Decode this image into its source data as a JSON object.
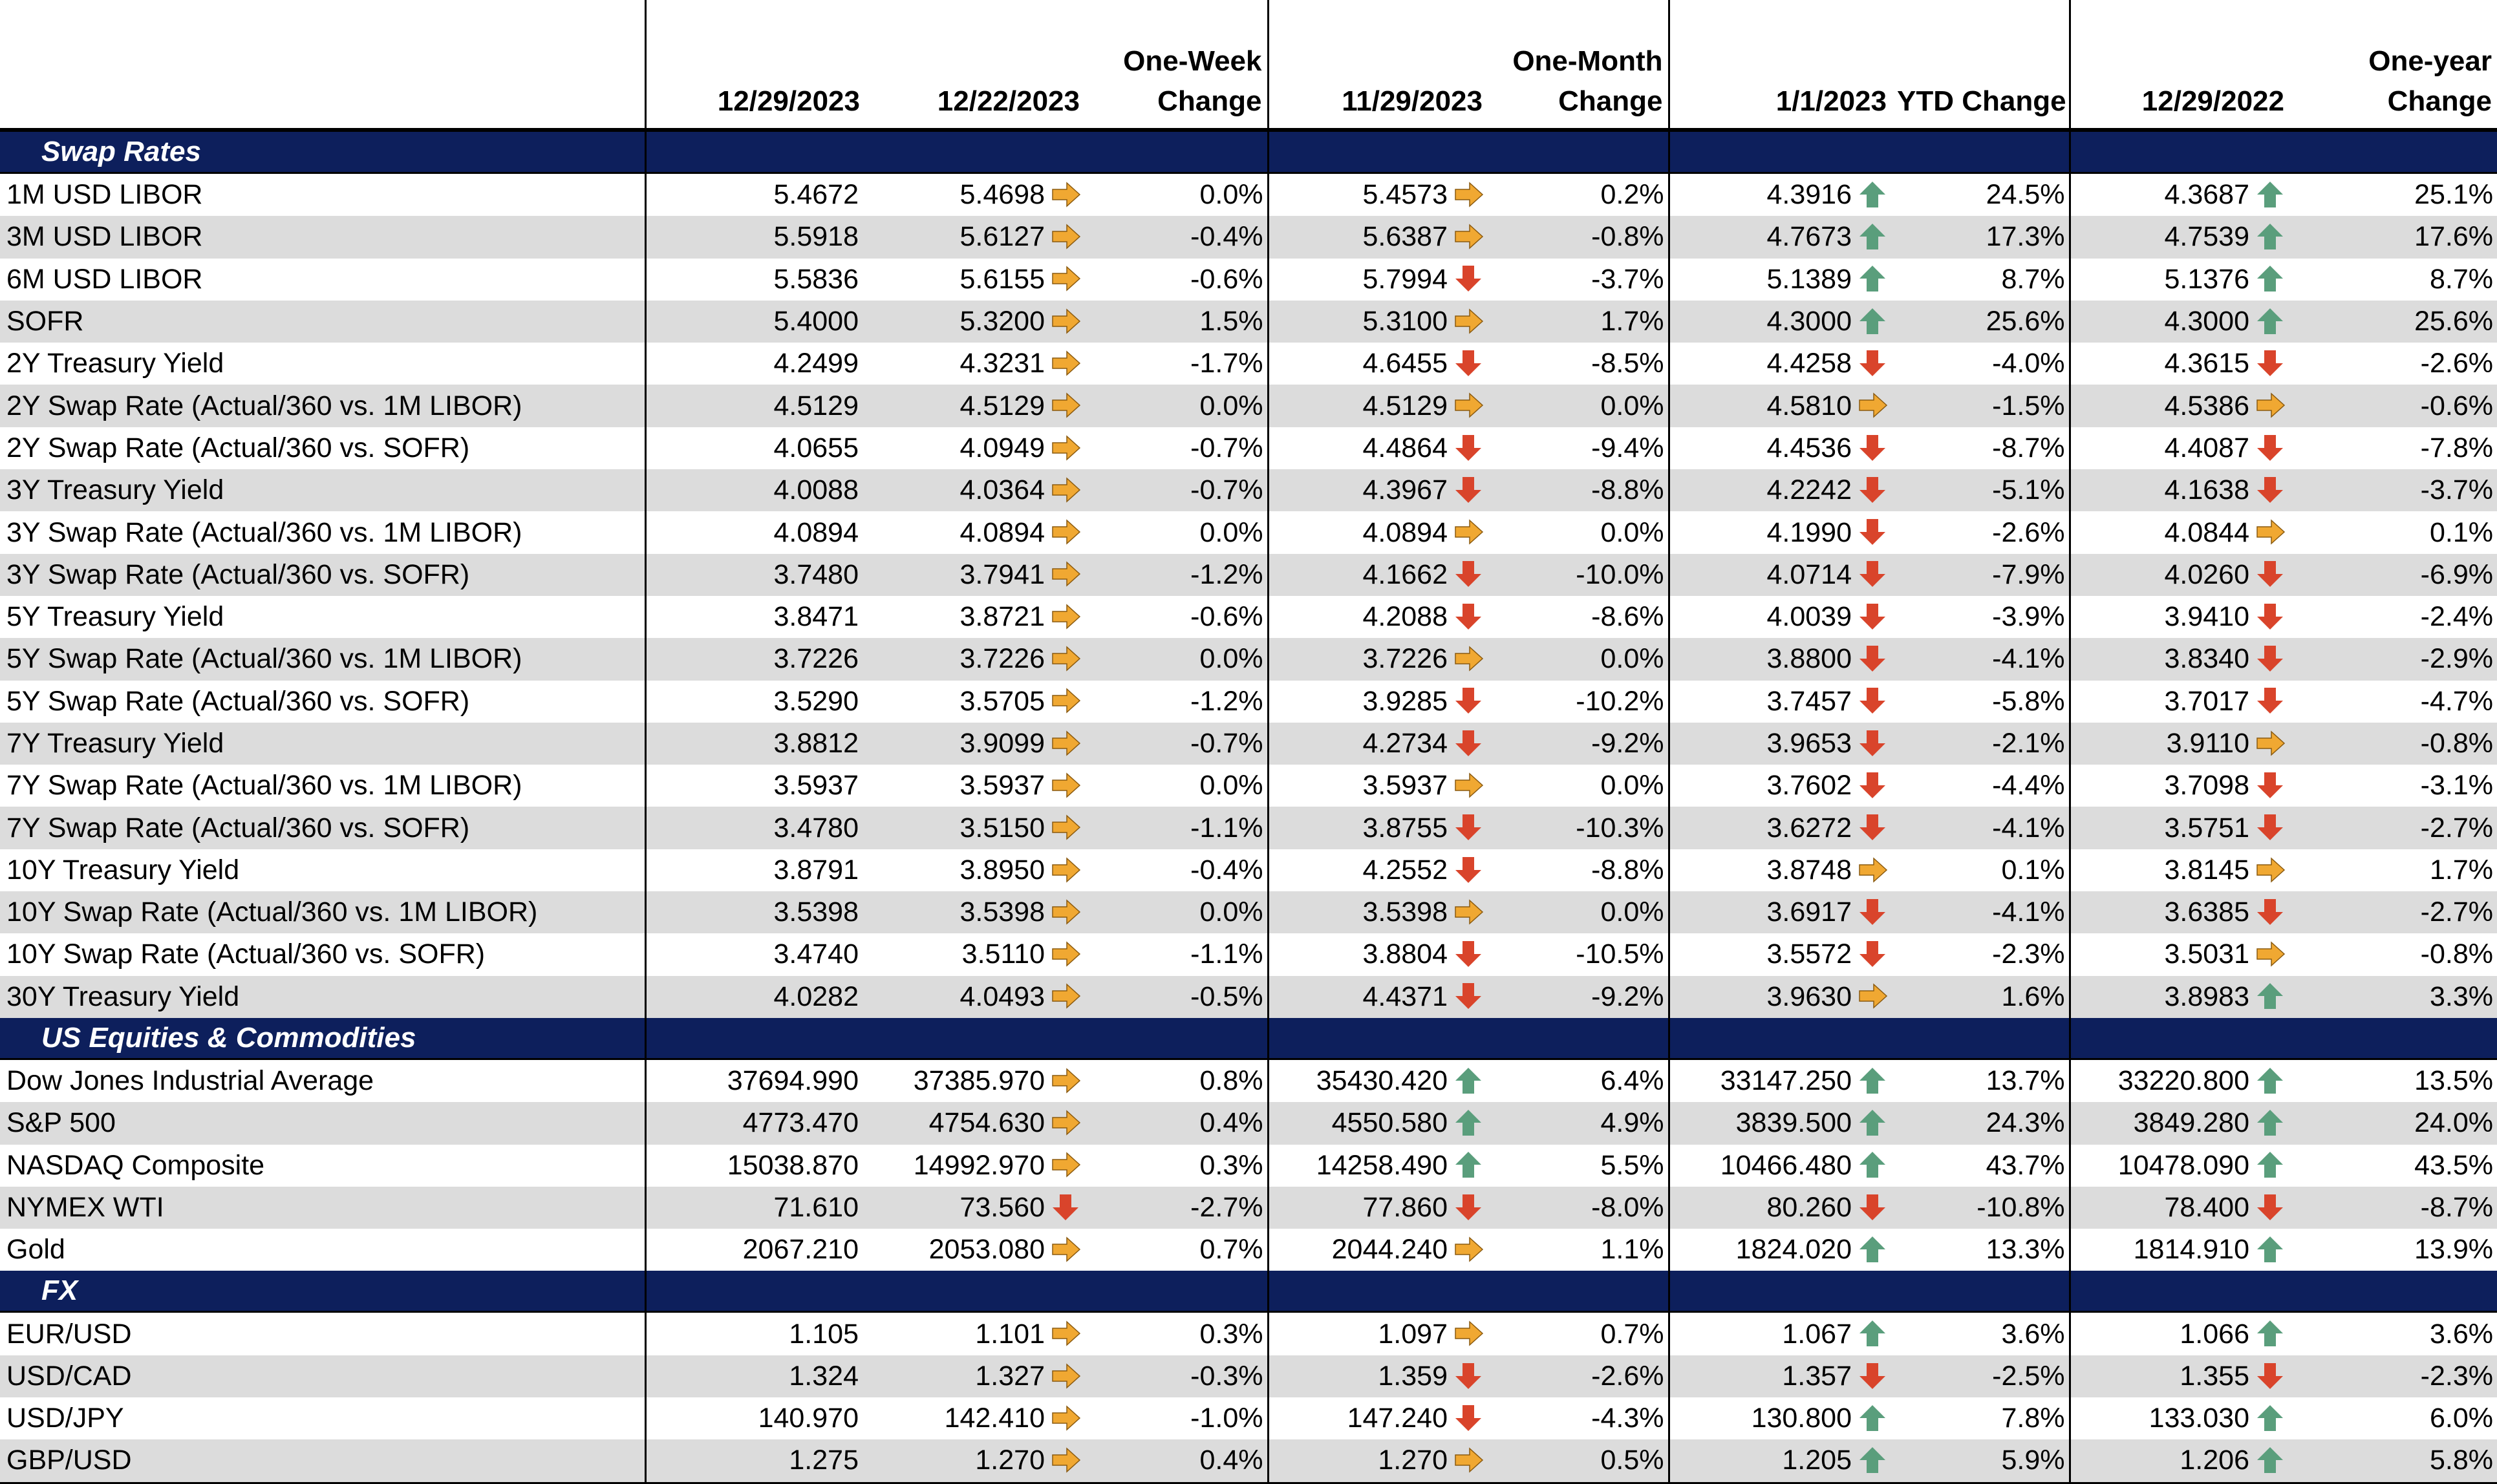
{
  "headers": {
    "col1": "12/29/2023",
    "col2": "12/22/2023",
    "col3_line1": "One-Week",
    "col3_line2": "Change",
    "col4": "11/29/2023",
    "col5_line1": "One-Month",
    "col5_line2": "Change",
    "col6": "1/1/2023",
    "col7": "YTD Change",
    "col8": "12/29/2022",
    "col9_line1": "One-year",
    "col9_line2": "Change"
  },
  "colors": {
    "section_bg": "#0d1f5c",
    "up": "#5a9e7c",
    "down": "#d9442b",
    "flat": "#f0a832",
    "stripe": "#dcdcdc"
  },
  "sections": [
    {
      "title": "Swap Rates",
      "rows": [
        {
          "name": "1M USD LIBOR",
          "v1": "5.4672",
          "v2": "5.4698",
          "a2": "flat",
          "wk": "0.0%",
          "v4": "5.4573",
          "a4": "flat",
          "mo": "0.2%",
          "v6": "4.3916",
          "a6": "up",
          "ytd": "24.5%",
          "v8": "4.3687",
          "a8": "up",
          "yr": "25.1%"
        },
        {
          "name": "3M USD LIBOR",
          "v1": "5.5918",
          "v2": "5.6127",
          "a2": "flat",
          "wk": "-0.4%",
          "v4": "5.6387",
          "a4": "flat",
          "mo": "-0.8%",
          "v6": "4.7673",
          "a6": "up",
          "ytd": "17.3%",
          "v8": "4.7539",
          "a8": "up",
          "yr": "17.6%"
        },
        {
          "name": "6M USD LIBOR",
          "v1": "5.5836",
          "v2": "5.6155",
          "a2": "flat",
          "wk": "-0.6%",
          "v4": "5.7994",
          "a4": "down",
          "mo": "-3.7%",
          "v6": "5.1389",
          "a6": "up",
          "ytd": "8.7%",
          "v8": "5.1376",
          "a8": "up",
          "yr": "8.7%"
        },
        {
          "name": "SOFR",
          "v1": "5.4000",
          "v2": "5.3200",
          "a2": "flat",
          "wk": "1.5%",
          "v4": "5.3100",
          "a4": "flat",
          "mo": "1.7%",
          "v6": "4.3000",
          "a6": "up",
          "ytd": "25.6%",
          "v8": "4.3000",
          "a8": "up",
          "yr": "25.6%"
        },
        {
          "name": "2Y Treasury Yield",
          "v1": "4.2499",
          "v2": "4.3231",
          "a2": "flat",
          "wk": "-1.7%",
          "v4": "4.6455",
          "a4": "down",
          "mo": "-8.5%",
          "v6": "4.4258",
          "a6": "down",
          "ytd": "-4.0%",
          "v8": "4.3615",
          "a8": "down",
          "yr": "-2.6%"
        },
        {
          "name": "2Y Swap Rate (Actual/360 vs. 1M LIBOR)",
          "v1": "4.5129",
          "v2": "4.5129",
          "a2": "flat",
          "wk": "0.0%",
          "v4": "4.5129",
          "a4": "flat",
          "mo": "0.0%",
          "v6": "4.5810",
          "a6": "flat",
          "ytd": "-1.5%",
          "v8": "4.5386",
          "a8": "flat",
          "yr": "-0.6%"
        },
        {
          "name": "2Y Swap Rate (Actual/360 vs. SOFR)",
          "v1": "4.0655",
          "v2": "4.0949",
          "a2": "flat",
          "wk": "-0.7%",
          "v4": "4.4864",
          "a4": "down",
          "mo": "-9.4%",
          "v6": "4.4536",
          "a6": "down",
          "ytd": "-8.7%",
          "v8": "4.4087",
          "a8": "down",
          "yr": "-7.8%"
        },
        {
          "name": "3Y Treasury Yield",
          "v1": "4.0088",
          "v2": "4.0364",
          "a2": "flat",
          "wk": "-0.7%",
          "v4": "4.3967",
          "a4": "down",
          "mo": "-8.8%",
          "v6": "4.2242",
          "a6": "down",
          "ytd": "-5.1%",
          "v8": "4.1638",
          "a8": "down",
          "yr": "-3.7%"
        },
        {
          "name": "3Y Swap Rate (Actual/360 vs. 1M LIBOR)",
          "v1": "4.0894",
          "v2": "4.0894",
          "a2": "flat",
          "wk": "0.0%",
          "v4": "4.0894",
          "a4": "flat",
          "mo": "0.0%",
          "v6": "4.1990",
          "a6": "down",
          "ytd": "-2.6%",
          "v8": "4.0844",
          "a8": "flat",
          "yr": "0.1%"
        },
        {
          "name": "3Y Swap Rate (Actual/360 vs. SOFR)",
          "v1": "3.7480",
          "v2": "3.7941",
          "a2": "flat",
          "wk": "-1.2%",
          "v4": "4.1662",
          "a4": "down",
          "mo": "-10.0%",
          "v6": "4.0714",
          "a6": "down",
          "ytd": "-7.9%",
          "v8": "4.0260",
          "a8": "down",
          "yr": "-6.9%"
        },
        {
          "name": "5Y Treasury Yield",
          "v1": "3.8471",
          "v2": "3.8721",
          "a2": "flat",
          "wk": "-0.6%",
          "v4": "4.2088",
          "a4": "down",
          "mo": "-8.6%",
          "v6": "4.0039",
          "a6": "down",
          "ytd": "-3.9%",
          "v8": "3.9410",
          "a8": "down",
          "yr": "-2.4%"
        },
        {
          "name": "5Y Swap Rate (Actual/360 vs. 1M LIBOR)",
          "v1": "3.7226",
          "v2": "3.7226",
          "a2": "flat",
          "wk": "0.0%",
          "v4": "3.7226",
          "a4": "flat",
          "mo": "0.0%",
          "v6": "3.8800",
          "a6": "down",
          "ytd": "-4.1%",
          "v8": "3.8340",
          "a8": "down",
          "yr": "-2.9%"
        },
        {
          "name": "5Y Swap Rate (Actual/360 vs. SOFR)",
          "v1": "3.5290",
          "v2": "3.5705",
          "a2": "flat",
          "wk": "-1.2%",
          "v4": "3.9285",
          "a4": "down",
          "mo": "-10.2%",
          "v6": "3.7457",
          "a6": "down",
          "ytd": "-5.8%",
          "v8": "3.7017",
          "a8": "down",
          "yr": "-4.7%"
        },
        {
          "name": "7Y Treasury Yield",
          "v1": "3.8812",
          "v2": "3.9099",
          "a2": "flat",
          "wk": "-0.7%",
          "v4": "4.2734",
          "a4": "down",
          "mo": "-9.2%",
          "v6": "3.9653",
          "a6": "down",
          "ytd": "-2.1%",
          "v8": "3.9110",
          "a8": "flat",
          "yr": "-0.8%"
        },
        {
          "name": "7Y Swap Rate (Actual/360 vs. 1M LIBOR)",
          "v1": "3.5937",
          "v2": "3.5937",
          "a2": "flat",
          "wk": "0.0%",
          "v4": "3.5937",
          "a4": "flat",
          "mo": "0.0%",
          "v6": "3.7602",
          "a6": "down",
          "ytd": "-4.4%",
          "v8": "3.7098",
          "a8": "down",
          "yr": "-3.1%"
        },
        {
          "name": "7Y Swap Rate (Actual/360 vs. SOFR)",
          "v1": "3.4780",
          "v2": "3.5150",
          "a2": "flat",
          "wk": "-1.1%",
          "v4": "3.8755",
          "a4": "down",
          "mo": "-10.3%",
          "v6": "3.6272",
          "a6": "down",
          "ytd": "-4.1%",
          "v8": "3.5751",
          "a8": "down",
          "yr": "-2.7%"
        },
        {
          "name": "10Y Treasury Yield",
          "v1": "3.8791",
          "v2": "3.8950",
          "a2": "flat",
          "wk": "-0.4%",
          "v4": "4.2552",
          "a4": "down",
          "mo": "-8.8%",
          "v6": "3.8748",
          "a6": "flat",
          "ytd": "0.1%",
          "v8": "3.8145",
          "a8": "flat",
          "yr": "1.7%"
        },
        {
          "name": "10Y Swap Rate (Actual/360 vs. 1M LIBOR)",
          "v1": "3.5398",
          "v2": "3.5398",
          "a2": "flat",
          "wk": "0.0%",
          "v4": "3.5398",
          "a4": "flat",
          "mo": "0.0%",
          "v6": "3.6917",
          "a6": "down",
          "ytd": "-4.1%",
          "v8": "3.6385",
          "a8": "down",
          "yr": "-2.7%"
        },
        {
          "name": "10Y Swap Rate (Actual/360 vs. SOFR)",
          "v1": "3.4740",
          "v2": "3.5110",
          "a2": "flat",
          "wk": "-1.1%",
          "v4": "3.8804",
          "a4": "down",
          "mo": "-10.5%",
          "v6": "3.5572",
          "a6": "down",
          "ytd": "-2.3%",
          "v8": "3.5031",
          "a8": "flat",
          "yr": "-0.8%"
        },
        {
          "name": "30Y Treasury Yield",
          "v1": "4.0282",
          "v2": "4.0493",
          "a2": "flat",
          "wk": "-0.5%",
          "v4": "4.4371",
          "a4": "down",
          "mo": "-9.2%",
          "v6": "3.9630",
          "a6": "flat",
          "ytd": "1.6%",
          "v8": "3.8983",
          "a8": "up",
          "yr": "3.3%"
        }
      ]
    },
    {
      "title": "US Equities & Commodities",
      "rows": [
        {
          "name": "Dow Jones Industrial Average",
          "v1": "37694.990",
          "v2": "37385.970",
          "a2": "flat",
          "wk": "0.8%",
          "v4": "35430.420",
          "a4": "up",
          "mo": "6.4%",
          "v6": "33147.250",
          "a6": "up",
          "ytd": "13.7%",
          "v8": "33220.800",
          "a8": "up",
          "yr": "13.5%"
        },
        {
          "name": "S&P 500",
          "v1": "4773.470",
          "v2": "4754.630",
          "a2": "flat",
          "wk": "0.4%",
          "v4": "4550.580",
          "a4": "up",
          "mo": "4.9%",
          "v6": "3839.500",
          "a6": "up",
          "ytd": "24.3%",
          "v8": "3849.280",
          "a8": "up",
          "yr": "24.0%"
        },
        {
          "name": "NASDAQ Composite",
          "v1": "15038.870",
          "v2": "14992.970",
          "a2": "flat",
          "wk": "0.3%",
          "v4": "14258.490",
          "a4": "up",
          "mo": "5.5%",
          "v6": "10466.480",
          "a6": "up",
          "ytd": "43.7%",
          "v8": "10478.090",
          "a8": "up",
          "yr": "43.5%"
        },
        {
          "name": "NYMEX WTI",
          "v1": "71.610",
          "v2": "73.560",
          "a2": "down",
          "wk": "-2.7%",
          "v4": "77.860",
          "a4": "down",
          "mo": "-8.0%",
          "v6": "80.260",
          "a6": "down",
          "ytd": "-10.8%",
          "v8": "78.400",
          "a8": "down",
          "yr": "-8.7%"
        },
        {
          "name": "Gold",
          "v1": "2067.210",
          "v2": "2053.080",
          "a2": "flat",
          "wk": "0.7%",
          "v4": "2044.240",
          "a4": "flat",
          "mo": "1.1%",
          "v6": "1824.020",
          "a6": "up",
          "ytd": "13.3%",
          "v8": "1814.910",
          "a8": "up",
          "yr": "13.9%"
        }
      ]
    },
    {
      "title": "FX",
      "rows": [
        {
          "name": "EUR/USD",
          "v1": "1.105",
          "v2": "1.101",
          "a2": "flat",
          "wk": "0.3%",
          "v4": "1.097",
          "a4": "flat",
          "mo": "0.7%",
          "v6": "1.067",
          "a6": "up",
          "ytd": "3.6%",
          "v8": "1.066",
          "a8": "up",
          "yr": "3.6%"
        },
        {
          "name": "USD/CAD",
          "v1": "1.324",
          "v2": "1.327",
          "a2": "flat",
          "wk": "-0.3%",
          "v4": "1.359",
          "a4": "down",
          "mo": "-2.6%",
          "v6": "1.357",
          "a6": "down",
          "ytd": "-2.5%",
          "v8": "1.355",
          "a8": "down",
          "yr": "-2.3%"
        },
        {
          "name": "USD/JPY",
          "v1": "140.970",
          "v2": "142.410",
          "a2": "flat",
          "wk": "-1.0%",
          "v4": "147.240",
          "a4": "down",
          "mo": "-4.3%",
          "v6": "130.800",
          "a6": "up",
          "ytd": "7.8%",
          "v8": "133.030",
          "a8": "up",
          "yr": "6.0%"
        },
        {
          "name": "GBP/USD",
          "v1": "1.275",
          "v2": "1.270",
          "a2": "flat",
          "wk": "0.4%",
          "v4": "1.270",
          "a4": "flat",
          "mo": "0.5%",
          "v6": "1.205",
          "a6": "up",
          "ytd": "5.9%",
          "v8": "1.206",
          "a8": "up",
          "yr": "5.8%"
        }
      ]
    }
  ]
}
